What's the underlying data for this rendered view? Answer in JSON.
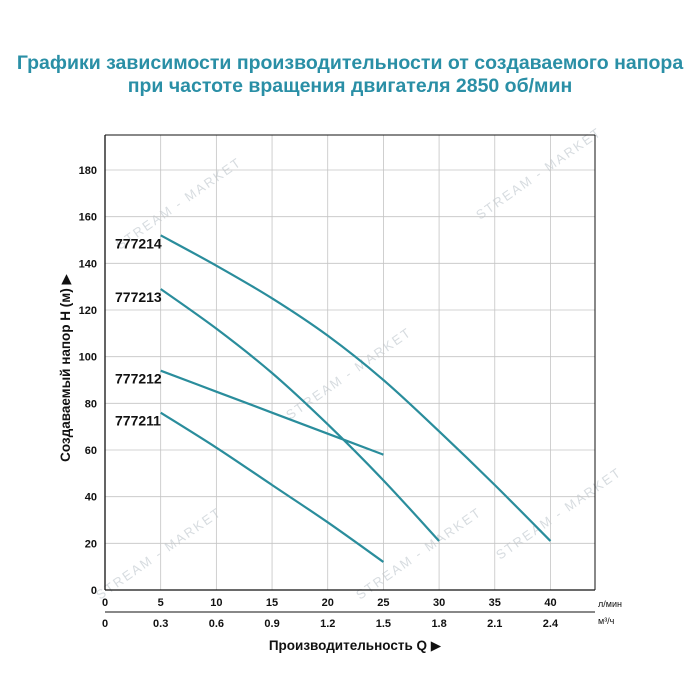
{
  "title_line1": "Графики зависимости производительности от создаваемого напора",
  "title_line2": "при частоте вращения двигателя 2850 об/мин",
  "watermark": "STREAM - MARKET",
  "colors": {
    "title": "#2a8fa6",
    "curve": "#2a8d9c",
    "grid": "#c4c4c4",
    "axis": "#111111"
  },
  "chart_data": {
    "type": "line",
    "title": "Графики зависимости производительности от создаваемого напора при частоте вращения двигателя 2850 об/мин",
    "xlabel": "Производительность Q",
    "ylabel": "Создаваемый напор H (м)",
    "x_unit": "л/мин",
    "x2_unit": "м³/ч",
    "xlim": [
      0,
      44
    ],
    "ylim": [
      0,
      195
    ],
    "x_ticks": [
      "0",
      "5",
      "10",
      "15",
      "20",
      "25",
      "30",
      "35",
      "40"
    ],
    "x2_ticks": [
      "0",
      "0.3",
      "0.6",
      "0.9",
      "1.2",
      "1.5",
      "1.8",
      "2.1",
      "2.4"
    ],
    "y_ticks": [
      "0",
      "20",
      "40",
      "60",
      "80",
      "100",
      "120",
      "140",
      "160",
      "180"
    ],
    "grid": true,
    "series": [
      {
        "name": "777214",
        "points": [
          [
            5,
            152
          ],
          [
            10,
            139
          ],
          [
            15,
            125
          ],
          [
            20,
            109
          ],
          [
            25,
            90
          ],
          [
            30,
            68
          ],
          [
            35,
            45
          ],
          [
            40,
            21
          ]
        ]
      },
      {
        "name": "777213",
        "points": [
          [
            5,
            129
          ],
          [
            10,
            112
          ],
          [
            15,
            93
          ],
          [
            20,
            71
          ],
          [
            25,
            47
          ],
          [
            30,
            21
          ]
        ]
      },
      {
        "name": "777212",
        "points": [
          [
            5,
            94
          ],
          [
            10,
            85
          ],
          [
            15,
            76
          ],
          [
            20,
            67
          ],
          [
            25,
            58
          ]
        ]
      },
      {
        "name": "777211",
        "points": [
          [
            5,
            76
          ],
          [
            10,
            61
          ],
          [
            15,
            45
          ],
          [
            20,
            29
          ],
          [
            25,
            12
          ]
        ]
      }
    ]
  }
}
